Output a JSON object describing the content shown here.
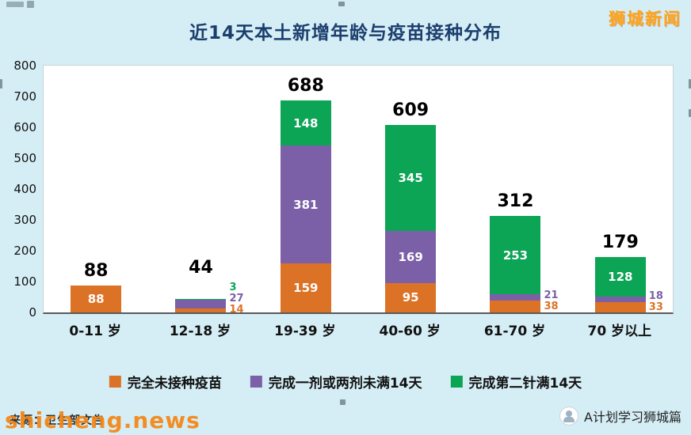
{
  "page": {
    "brand": "狮城新闻",
    "watermark": "shicheng.news",
    "source": "来源：卫生部文告",
    "footer_account": "A计划学习狮城篇"
  },
  "chart_data": {
    "type": "bar",
    "stacked": true,
    "title": "近14天本土新增年龄与疫苗接种分布",
    "categories": [
      "0-11 岁",
      "12-18 岁",
      "19-39 岁",
      "40-60 岁",
      "61-70 岁",
      "70 岁以上"
    ],
    "series": [
      {
        "name": "完全未接种疫苗",
        "color": "#dc7226",
        "values": [
          88,
          14,
          159,
          95,
          38,
          33
        ]
      },
      {
        "name": "完成一剂或两剂未满14天",
        "color": "#7b60a8",
        "values": [
          0,
          27,
          381,
          169,
          21,
          18
        ]
      },
      {
        "name": "完成第二针满14天",
        "color": "#0ca455",
        "values": [
          0,
          3,
          148,
          345,
          253,
          128
        ]
      }
    ],
    "totals": [
      88,
      44,
      688,
      609,
      312,
      179
    ],
    "ylim": [
      0,
      800
    ],
    "yticks": [
      0,
      100,
      200,
      300,
      400,
      500,
      600,
      700,
      800
    ],
    "legend_position": "bottom",
    "grid": false
  },
  "colors": {
    "background": "#d5eef5",
    "title": "#1c3e6e",
    "brand": "#ffa519",
    "watermark": "#f58616",
    "text": "#111111"
  }
}
